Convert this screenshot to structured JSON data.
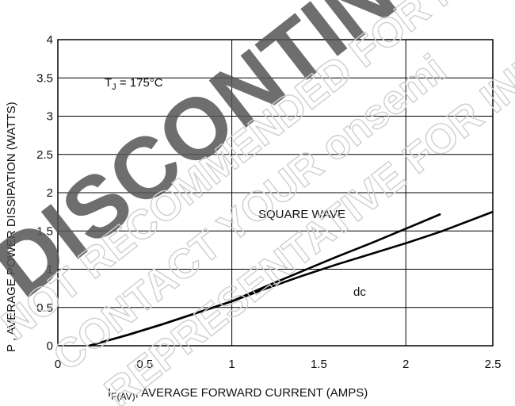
{
  "chart_data": {
    "type": "line",
    "xlabel": "I",
    "xlabel_sub": "F(AV)",
    "xlabel_rest": ", AVERAGE FORWARD CURRENT (AMPS)",
    "ylabel": "P  , AVERAGE POWER DISSIPATION (WATTS)",
    "xlim": [
      0,
      2.5
    ],
    "ylim": [
      0,
      4
    ],
    "x_ticks": [
      0,
      0.5,
      1,
      1.5,
      2,
      2.5
    ],
    "y_ticks": [
      0,
      0.5,
      1,
      1.5,
      2,
      2.5,
      3,
      3.5,
      4
    ],
    "x_tick_labels": [
      "0",
      "0.5",
      "1",
      "1.5",
      "2",
      "2.5"
    ],
    "y_tick_labels": [
      "0",
      "0.5",
      "1",
      "1.5",
      "2",
      "2.5",
      "3",
      "3.5",
      "4"
    ],
    "grid": true,
    "series": [
      {
        "name": "SQUARE WAVE",
        "x": [
          0.18,
          0.4,
          0.6,
          0.8,
          1.0,
          1.2,
          1.4,
          1.6,
          1.8,
          2.0,
          2.2
        ],
        "y": [
          0.0,
          0.14,
          0.28,
          0.43,
          0.58,
          0.78,
          0.97,
          1.16,
          1.34,
          1.53,
          1.72
        ]
      },
      {
        "name": "dc",
        "x": [
          0.18,
          0.4,
          0.6,
          0.8,
          1.0,
          1.2,
          1.4,
          1.6,
          1.8,
          2.0,
          2.2,
          2.5
        ],
        "y": [
          0.0,
          0.14,
          0.28,
          0.43,
          0.58,
          0.75,
          0.91,
          1.06,
          1.2,
          1.34,
          1.49,
          1.75
        ]
      }
    ],
    "annotations": [
      {
        "text": "T",
        "sub": "J",
        "rest": " = 175°C"
      },
      {
        "text": "SQUARE WAVE"
      },
      {
        "text": "dc"
      }
    ]
  },
  "watermark": {
    "lines": [
      "DISCONTINUED",
      "NOT RECOMMENDED FOR NEW DESIGN",
      "CONTACT YOUR onsemi",
      "REPRESENTATIVE FOR INFORMATION"
    ],
    "color_dark": "#555555",
    "color_light": "#dddddd"
  }
}
